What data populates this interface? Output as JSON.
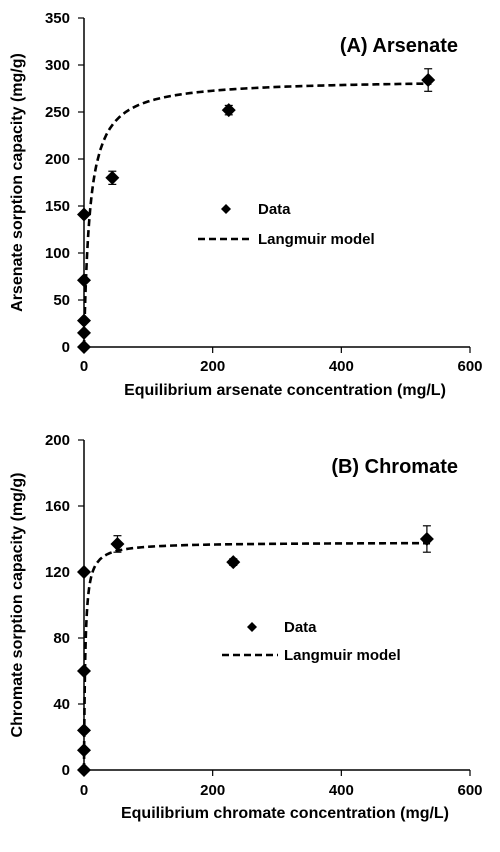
{
  "chart_data": [
    {
      "type": "scatter",
      "title": "(A) Arsenate",
      "xlabel": "Equilibrium arsenate concentration (mg/L)",
      "ylabel": "Arsenate sorption capacity (mg/g)",
      "xlim": [
        0,
        600
      ],
      "ylim": [
        0,
        350
      ],
      "xticks": [
        0,
        200,
        400,
        600
      ],
      "yticks": [
        0,
        50,
        100,
        150,
        200,
        250,
        300,
        350
      ],
      "xtick_labels": [
        "0",
        "200",
        "400",
        "600"
      ],
      "ytick_labels": [
        "0",
        "50",
        "100",
        "150",
        "200",
        "250",
        "300",
        "350"
      ],
      "grid": false,
      "legend_position": "center",
      "series": [
        {
          "name": "Data",
          "marker": "diamond",
          "color": "#000000",
          "x": [
            0,
            0,
            0,
            0,
            0,
            44,
            225,
            535
          ],
          "y": [
            0,
            15,
            28,
            71,
            141,
            180,
            252,
            284
          ],
          "error": [
            0,
            0,
            0,
            0,
            0,
            7,
            5,
            12
          ]
        },
        {
          "name": "Langmuir model",
          "style": "dashed",
          "color": "#000000",
          "model": {
            "qmax": 285,
            "K": 0.11
          }
        }
      ]
    },
    {
      "type": "scatter",
      "title": "(B) Chromate",
      "xlabel": "Equilibrium chromate concentration (mg/L)",
      "ylabel": "Chromate sorption capacity (mg/g)",
      "xlim": [
        0,
        600
      ],
      "ylim": [
        0,
        200
      ],
      "xticks": [
        0,
        200,
        400,
        600
      ],
      "yticks": [
        0,
        40,
        80,
        120,
        160,
        200
      ],
      "xtick_labels": [
        "0",
        "200",
        "400",
        "600"
      ],
      "ytick_labels": [
        "0",
        "40",
        "80",
        "120",
        "160",
        "200"
      ],
      "grid": false,
      "legend_position": "center",
      "series": [
        {
          "name": "Data",
          "marker": "diamond",
          "color": "#000000",
          "x": [
            0,
            0,
            0,
            0,
            0,
            52,
            232,
            533
          ],
          "y": [
            0,
            12,
            24,
            60,
            120,
            137,
            126,
            140
          ],
          "error": [
            0,
            0,
            0,
            0,
            0,
            5,
            2,
            8
          ]
        },
        {
          "name": "Langmuir model",
          "style": "dashed",
          "color": "#000000",
          "model": {
            "qmax": 138,
            "K": 0.5
          }
        }
      ]
    }
  ]
}
